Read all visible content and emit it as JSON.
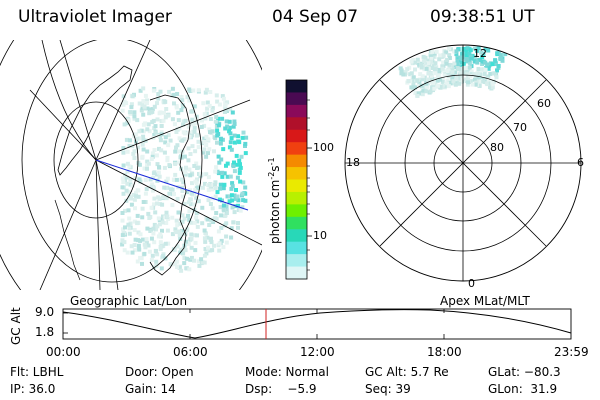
{
  "header": {
    "title": "Ultraviolet Imager",
    "date": "04 Sep 07",
    "time": "09:38:51 UT"
  },
  "left_panel": {
    "label": "Geographic Lat/Lon"
  },
  "right_panel": {
    "label": "Apex MLat/MLT",
    "clock_labels": {
      "top": "12",
      "left": "18",
      "right": "6",
      "bottom": "0"
    },
    "lat_labels": [
      "60",
      "70",
      "80"
    ]
  },
  "colorbar": {
    "unit_label": "photon cm",
    "unit_exp1": "-2",
    "unit_mid": "s",
    "unit_exp2": "-1",
    "tick_100": "100",
    "tick_10": "10",
    "colors": [
      "#101030",
      "#4a0a52",
      "#8a0a5a",
      "#b0102a",
      "#d81818",
      "#f04010",
      "#f58a00",
      "#f6c200",
      "#eaea00",
      "#b8f000",
      "#6ef000",
      "#30e060",
      "#28d8b8",
      "#58e2e2",
      "#a8eeee",
      "#dff6f6"
    ]
  },
  "timeline": {
    "y_label": "GC Alt",
    "y_ticks": [
      "9.0",
      "1.8"
    ],
    "x_ticks": [
      "00:00",
      "06:00",
      "12:00",
      "18:00",
      "23:59"
    ],
    "current_time_color": "#d02020"
  },
  "footer": {
    "flt": "Flt: LBHL",
    "door": "Door: Open",
    "mode": "Mode: Normal",
    "gc_alt": "GC Alt: 5.7 Re",
    "glat": "GLat: −80.3",
    "ip": "IP: 36.0",
    "gain": "Gain: 14",
    "dsp": "Dsp:    −5.9",
    "seq": "Seq: 39",
    "glon": "GLon:  31.9"
  }
}
